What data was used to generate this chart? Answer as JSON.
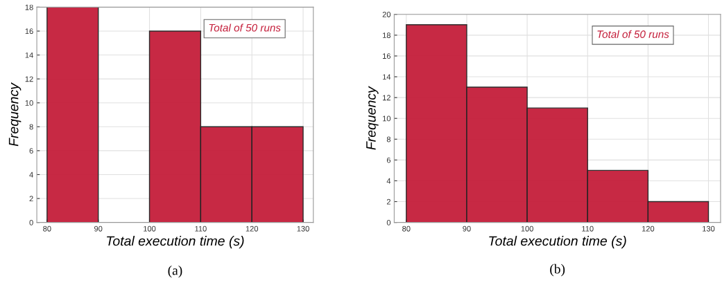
{
  "chart_data": [
    {
      "type": "histogram",
      "bins": [
        80,
        90,
        100,
        110,
        120,
        130
      ],
      "values": [
        18,
        0,
        16,
        8,
        8
      ],
      "color": "#c41e3a",
      "xlabel": "Total execution time (s)",
      "ylabel": "Frequency",
      "xlim": [
        78,
        132
      ],
      "xticks": [
        80,
        90,
        100,
        110,
        120,
        130
      ],
      "ylim": [
        0,
        18
      ],
      "yticks": [
        0,
        2,
        4,
        6,
        8,
        10,
        12,
        14,
        16,
        18
      ],
      "grid": true,
      "annotations": [
        "Total of 50 runs",
        "(a)"
      ]
    },
    {
      "type": "histogram",
      "bins": [
        80,
        90,
        100,
        110,
        120,
        130
      ],
      "values": [
        19,
        13,
        11,
        5,
        2
      ],
      "color": "#c41e3a",
      "xlabel": "Total execution time (s)",
      "ylabel": "Frequency",
      "xlim": [
        78,
        132
      ],
      "xticks": [
        80,
        90,
        100,
        110,
        120,
        130
      ],
      "ylim": [
        0,
        20
      ],
      "yticks": [
        0,
        2,
        4,
        6,
        8,
        10,
        12,
        14,
        16,
        18,
        20
      ],
      "grid": true,
      "annotations": [
        "Total of 50 runs",
        "(b)"
      ]
    }
  ]
}
